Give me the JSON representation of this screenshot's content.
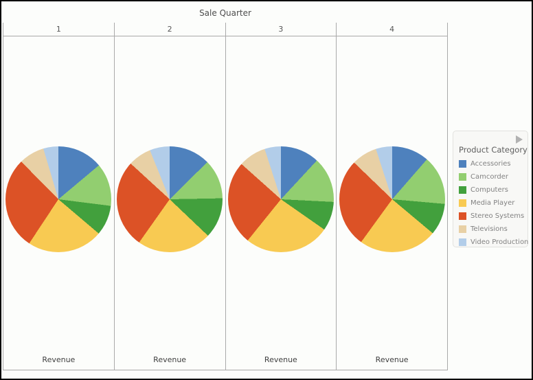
{
  "title": "Sale Quarter",
  "columns": [
    {
      "label": "1",
      "axis_label": "Revenue"
    },
    {
      "label": "2",
      "axis_label": "Revenue"
    },
    {
      "label": "3",
      "axis_label": "Revenue"
    },
    {
      "label": "4",
      "axis_label": "Revenue"
    }
  ],
  "legend": {
    "title": "Product Category",
    "scroll_icon": "right-arrow",
    "items": [
      {
        "label": "Accessories",
        "color": "#4e81bd"
      },
      {
        "label": "Camcorder",
        "color": "#92ce70"
      },
      {
        "label": "Computers",
        "color": "#42a03d"
      },
      {
        "label": "Media Player",
        "color": "#f8ca52"
      },
      {
        "label": "Stereo Systems",
        "color": "#dc5226"
      },
      {
        "label": "Televisions",
        "color": "#e8d0a5"
      },
      {
        "label": "Video Production",
        "color": "#b2cde9"
      }
    ]
  },
  "chart_data": {
    "type": "pie",
    "title": "Sale Quarter",
    "facet_field": "Sale Quarter",
    "measure": "Revenue",
    "legend_title": "Product Category",
    "legend_position": "right",
    "categories": [
      "Accessories",
      "Camcorder",
      "Computers",
      "Media Player",
      "Stereo Systems",
      "Televisions",
      "Video Production"
    ],
    "colors": [
      "#4e81bd",
      "#92ce70",
      "#42a03d",
      "#f8ca52",
      "#dc5226",
      "#e8d0a5",
      "#b2cde9"
    ],
    "pies": [
      {
        "quarter": "1",
        "values_pct": [
          13.9,
          13.1,
          9.2,
          23.1,
          28.3,
          7.8,
          4.6
        ]
      },
      {
        "quarter": "2",
        "values_pct": [
          12.6,
          12.1,
          12.4,
          22.7,
          27.0,
          7.1,
          6.1
        ]
      },
      {
        "quarter": "3",
        "values_pct": [
          11.9,
          13.9,
          8.9,
          26.1,
          25.8,
          8.4,
          5.0
        ]
      },
      {
        "quarter": "4",
        "values_pct": [
          11.4,
          15.0,
          9.7,
          23.9,
          27.2,
          7.8,
          5.0
        ]
      }
    ],
    "slice_start": "top",
    "slice_direction": "clockwise",
    "grid": true
  }
}
